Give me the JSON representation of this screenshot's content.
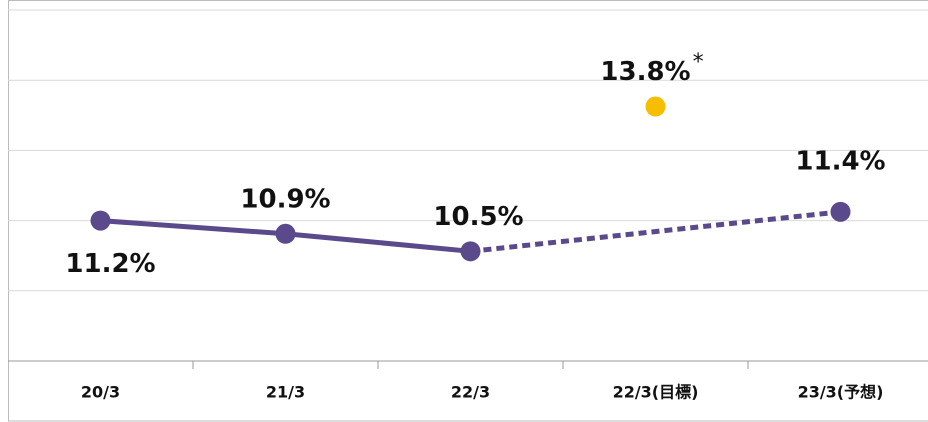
{
  "chart_data": {
    "type": "line",
    "categories": [
      "20/3",
      "21/3",
      "22/3",
      "22/3(目標)",
      "23/3(予想)"
    ],
    "series": [
      {
        "color": "#5b4a8b",
        "values": [
          11.2,
          10.9,
          10.5,
          null,
          11.4
        ],
        "value_labels": [
          "11.2%",
          "10.9%",
          "10.5%",
          null,
          "11.4%"
        ],
        "line_styles": [
          "solid",
          "solid",
          "dotted",
          "dotted"
        ]
      },
      {
        "color": "#f7bd00",
        "values": [
          null,
          null,
          null,
          13.8,
          null
        ],
        "value_labels": [
          null,
          null,
          null,
          "13.8%",
          null
        ]
      }
    ],
    "annotations": [
      "*"
    ],
    "ylim": [
      8,
      16
    ],
    "yticks": [
      8,
      9.6,
      11.2,
      12.8,
      14.4,
      16
    ],
    "grid": true
  }
}
